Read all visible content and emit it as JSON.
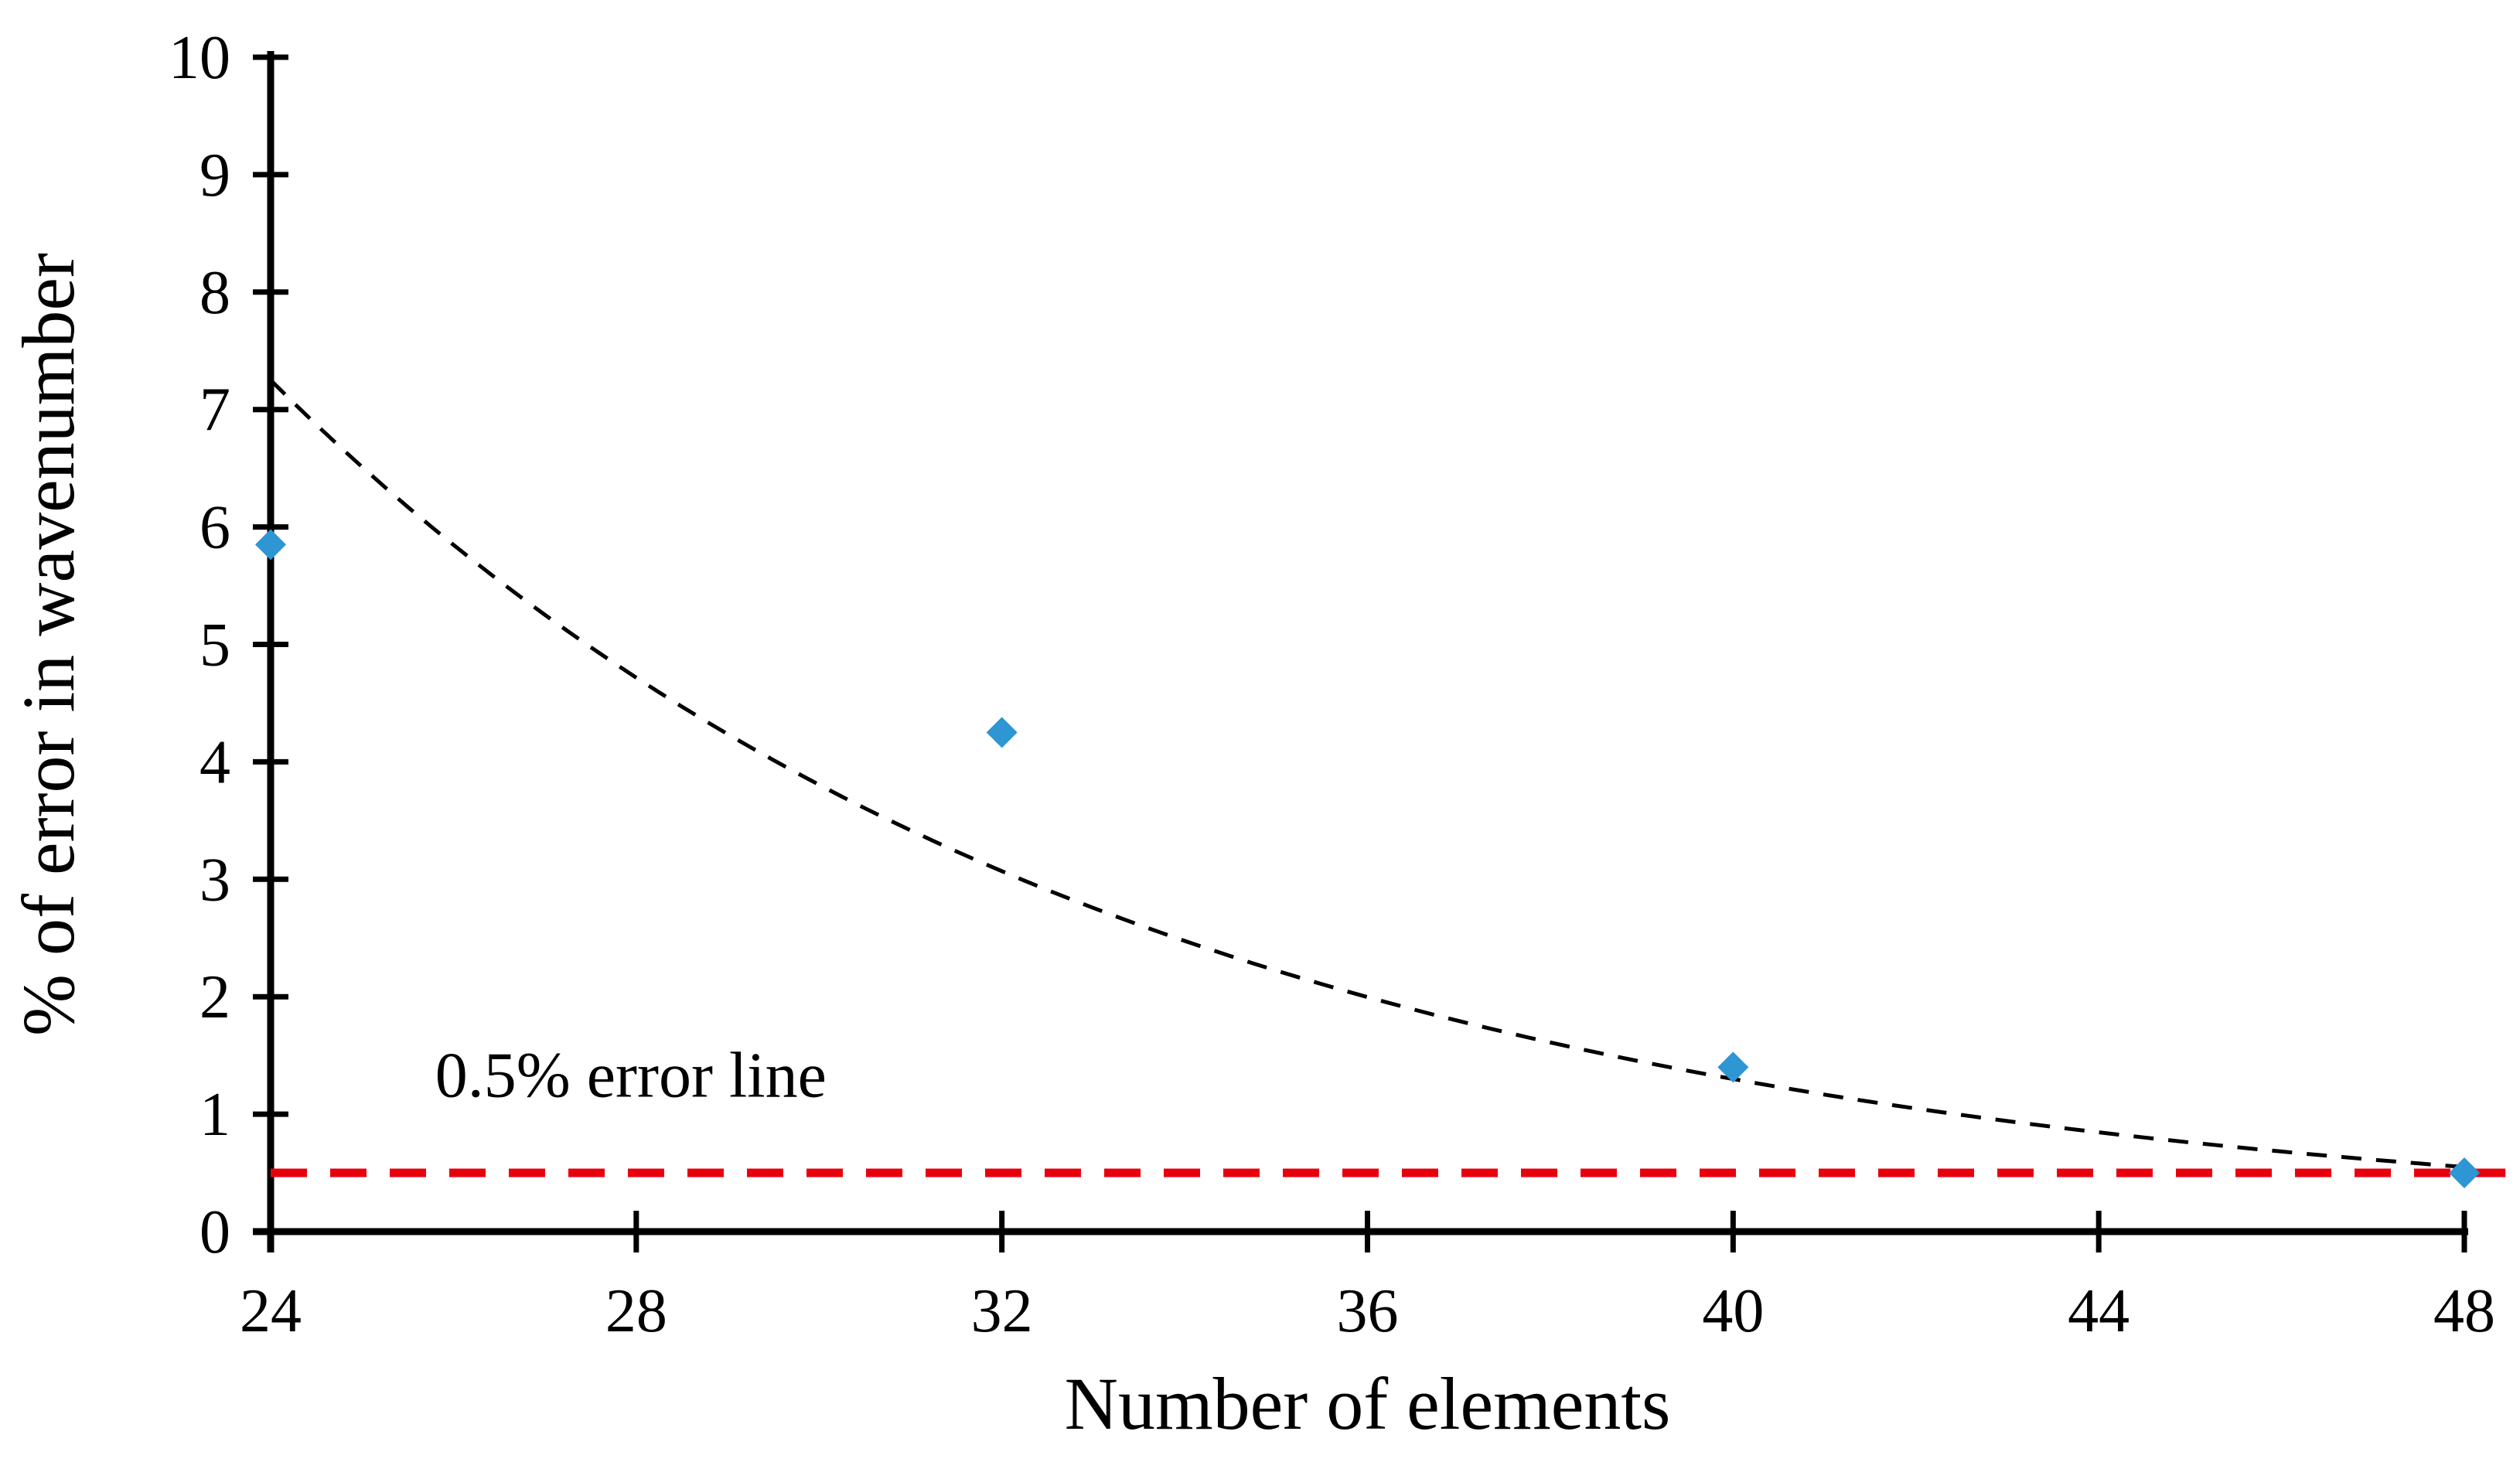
{
  "chart_data": {
    "type": "scatter",
    "title": "",
    "xlabel": "Number of elements",
    "ylabel": "% of error in wavenumber",
    "xlim": [
      24,
      48
    ],
    "ylim": [
      0,
      10
    ],
    "x_ticks": [
      24,
      28,
      32,
      36,
      40,
      44,
      48
    ],
    "y_ticks": [
      0,
      1,
      2,
      3,
      4,
      5,
      6,
      7,
      8,
      9,
      10
    ],
    "grid": false,
    "legend": "none",
    "series": [
      {
        "name": "percent error data points",
        "type": "scatter",
        "marker": "diamond",
        "color": "#2D96D3",
        "points": [
          [
            24,
            5.85
          ],
          [
            32,
            4.25
          ],
          [
            40,
            1.4
          ],
          [
            48,
            0.5
          ]
        ]
      },
      {
        "name": "exponential trend line",
        "type": "trend",
        "line_style": "dashed",
        "color": "#000000",
        "fit": "exponential",
        "x_start": 24,
        "y_start": 7.25,
        "x_end": 48,
        "y_end": 0.55
      },
      {
        "name": "0.5% error reference line",
        "type": "hline",
        "line_style": "dashed",
        "color": "#E8000D",
        "y": 0.5,
        "x_start": 24,
        "x_end": 48.45
      }
    ],
    "annotation": {
      "text": "0.5% error line",
      "x": 25.8,
      "y": 1.15
    }
  }
}
